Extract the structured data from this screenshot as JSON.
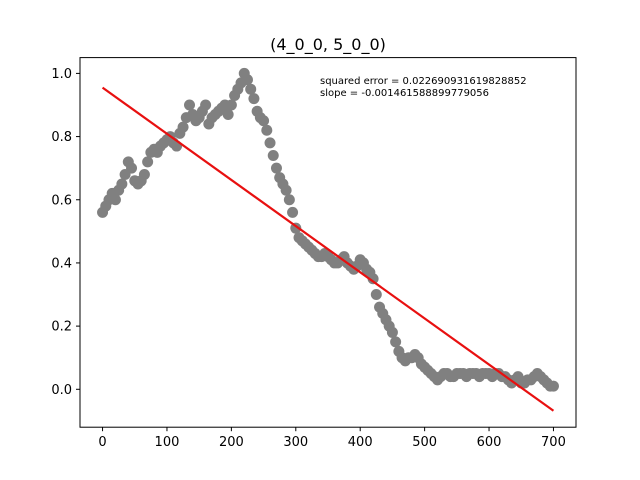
{
  "chart_data": {
    "type": "scatter",
    "title": "(4_0_0, 5_0_0)",
    "xlabel": "",
    "ylabel": "",
    "xlim": [
      -35,
      735
    ],
    "ylim": [
      -0.12,
      1.05
    ],
    "grid": false,
    "x_ticks": [
      0,
      100,
      200,
      300,
      400,
      500,
      600,
      700
    ],
    "x_tick_labels": [
      "0",
      "100",
      "200",
      "300",
      "400",
      "500",
      "600",
      "700"
    ],
    "y_ticks": [
      0.0,
      0.2,
      0.4,
      0.6,
      0.8,
      1.0
    ],
    "y_tick_labels": [
      "0.0",
      "0.2",
      "0.4",
      "0.6",
      "0.8",
      "1.0"
    ],
    "annotations": [
      "squared error = 0.022690931619828852",
      "slope = -0.001461588899779056"
    ],
    "colors": {
      "points": "#808080",
      "fit_line": "#e81010"
    },
    "series": [
      {
        "kind": "points",
        "x": [
          0,
          5,
          10,
          15,
          20,
          25,
          30,
          35,
          40,
          45,
          50,
          55,
          60,
          65,
          70,
          75,
          80,
          85,
          90,
          95,
          100,
          105,
          110,
          115,
          120,
          125,
          130,
          135,
          140,
          145,
          150,
          155,
          160,
          165,
          170,
          175,
          180,
          185,
          190,
          195,
          200,
          205,
          210,
          215,
          220,
          225,
          230,
          235,
          240,
          245,
          250,
          255,
          260,
          265,
          270,
          275,
          280,
          285,
          290,
          295,
          300,
          305,
          310,
          315,
          320,
          325,
          330,
          335,
          340,
          345,
          350,
          355,
          360,
          365,
          370,
          375,
          380,
          385,
          390,
          395,
          400,
          405,
          410,
          415,
          420,
          425,
          430,
          435,
          440,
          445,
          450,
          455,
          460,
          465,
          470,
          475,
          480,
          485,
          490,
          495,
          500,
          505,
          510,
          515,
          520,
          525,
          530,
          535,
          540,
          545,
          550,
          555,
          560,
          565,
          570,
          575,
          580,
          585,
          590,
          595,
          600,
          605,
          610,
          615,
          620,
          625,
          630,
          635,
          640,
          645,
          650,
          655,
          660,
          665,
          670,
          675,
          680,
          685,
          690,
          695,
          700
        ],
        "y": [
          0.56,
          0.58,
          0.6,
          0.62,
          0.6,
          0.63,
          0.65,
          0.68,
          0.72,
          0.7,
          0.66,
          0.65,
          0.66,
          0.68,
          0.72,
          0.75,
          0.76,
          0.75,
          0.77,
          0.78,
          0.79,
          0.8,
          0.78,
          0.77,
          0.81,
          0.83,
          0.86,
          0.9,
          0.87,
          0.85,
          0.86,
          0.88,
          0.9,
          0.84,
          0.86,
          0.87,
          0.88,
          0.89,
          0.9,
          0.87,
          0.9,
          0.93,
          0.95,
          0.97,
          1.0,
          0.98,
          0.95,
          0.92,
          0.88,
          0.86,
          0.85,
          0.82,
          0.78,
          0.74,
          0.7,
          0.67,
          0.65,
          0.63,
          0.6,
          0.56,
          0.51,
          0.48,
          0.47,
          0.46,
          0.45,
          0.44,
          0.43,
          0.42,
          0.42,
          0.43,
          0.42,
          0.41,
          0.4,
          0.4,
          0.41,
          0.42,
          0.4,
          0.39,
          0.38,
          0.39,
          0.41,
          0.4,
          0.38,
          0.37,
          0.35,
          0.3,
          0.26,
          0.24,
          0.22,
          0.2,
          0.18,
          0.15,
          0.12,
          0.1,
          0.09,
          0.1,
          0.1,
          0.11,
          0.1,
          0.08,
          0.07,
          0.06,
          0.05,
          0.04,
          0.03,
          0.04,
          0.05,
          0.05,
          0.04,
          0.04,
          0.05,
          0.05,
          0.05,
          0.04,
          0.05,
          0.05,
          0.05,
          0.04,
          0.05,
          0.05,
          0.05,
          0.04,
          0.05,
          0.05,
          0.04,
          0.04,
          0.03,
          0.02,
          0.03,
          0.04,
          0.02,
          0.02,
          0.03,
          0.03,
          0.04,
          0.05,
          0.04,
          0.03,
          0.02,
          0.01,
          0.01
        ]
      },
      {
        "kind": "fit-line",
        "x": [
          0,
          700
        ],
        "y": [
          0.955,
          -0.068
        ]
      }
    ]
  }
}
